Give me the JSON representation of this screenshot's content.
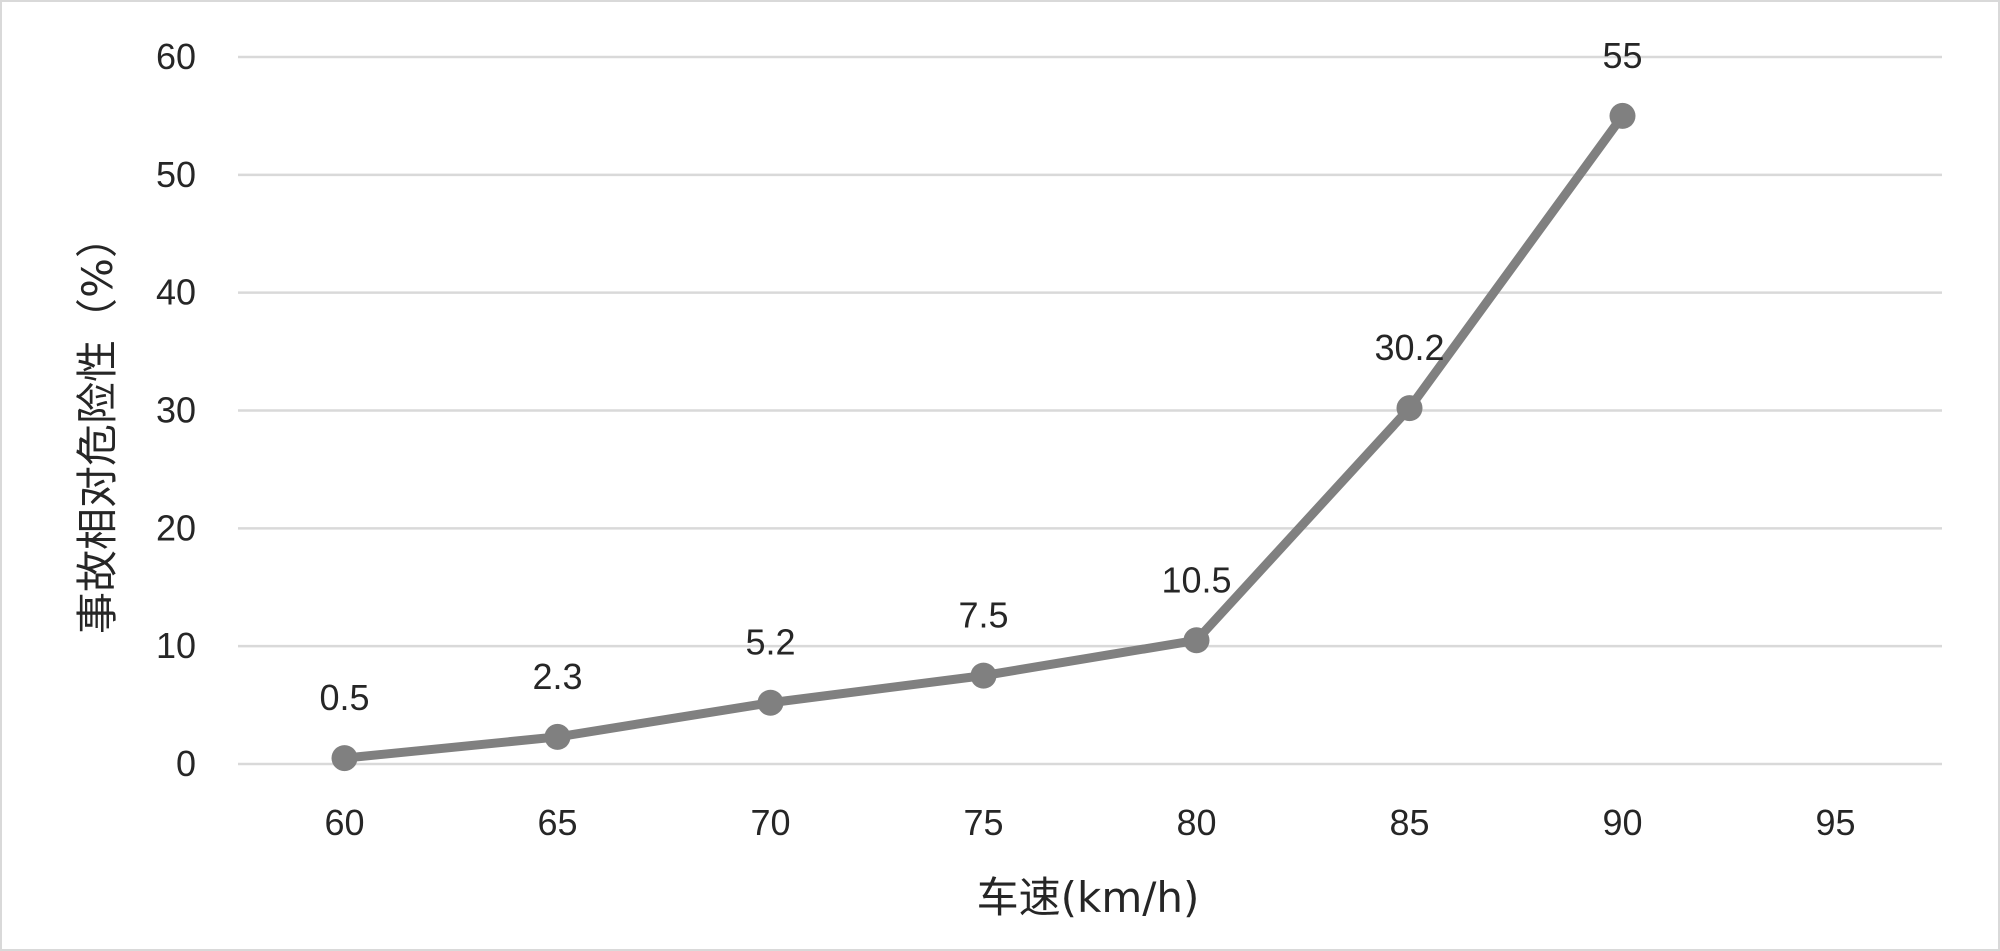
{
  "chart_data": {
    "type": "line",
    "title": "",
    "xlabel": "车速(km/h)",
    "ylabel": "事故相对危险性（%）",
    "x_ticks": [
      "60",
      "65",
      "70",
      "75",
      "80",
      "85",
      "90",
      "95"
    ],
    "y_ticks": [
      "0",
      "10",
      "20",
      "30",
      "40",
      "50",
      "60"
    ],
    "ylim": [
      0,
      60
    ],
    "grid": true,
    "legend": "none",
    "series": [
      {
        "x": [
          60,
          65,
          70,
          75,
          80,
          85,
          90
        ],
        "values": [
          0.5,
          2.3,
          5.2,
          7.5,
          10.5,
          30.2,
          55
        ],
        "labels": [
          "0.5",
          "2.3",
          "5.2",
          "7.5",
          "10.5",
          "30.2",
          "55"
        ],
        "color": "#808080"
      }
    ],
    "colors": {
      "line": "#808080",
      "grid": "#d9d9d9",
      "text": "#262626"
    }
  }
}
